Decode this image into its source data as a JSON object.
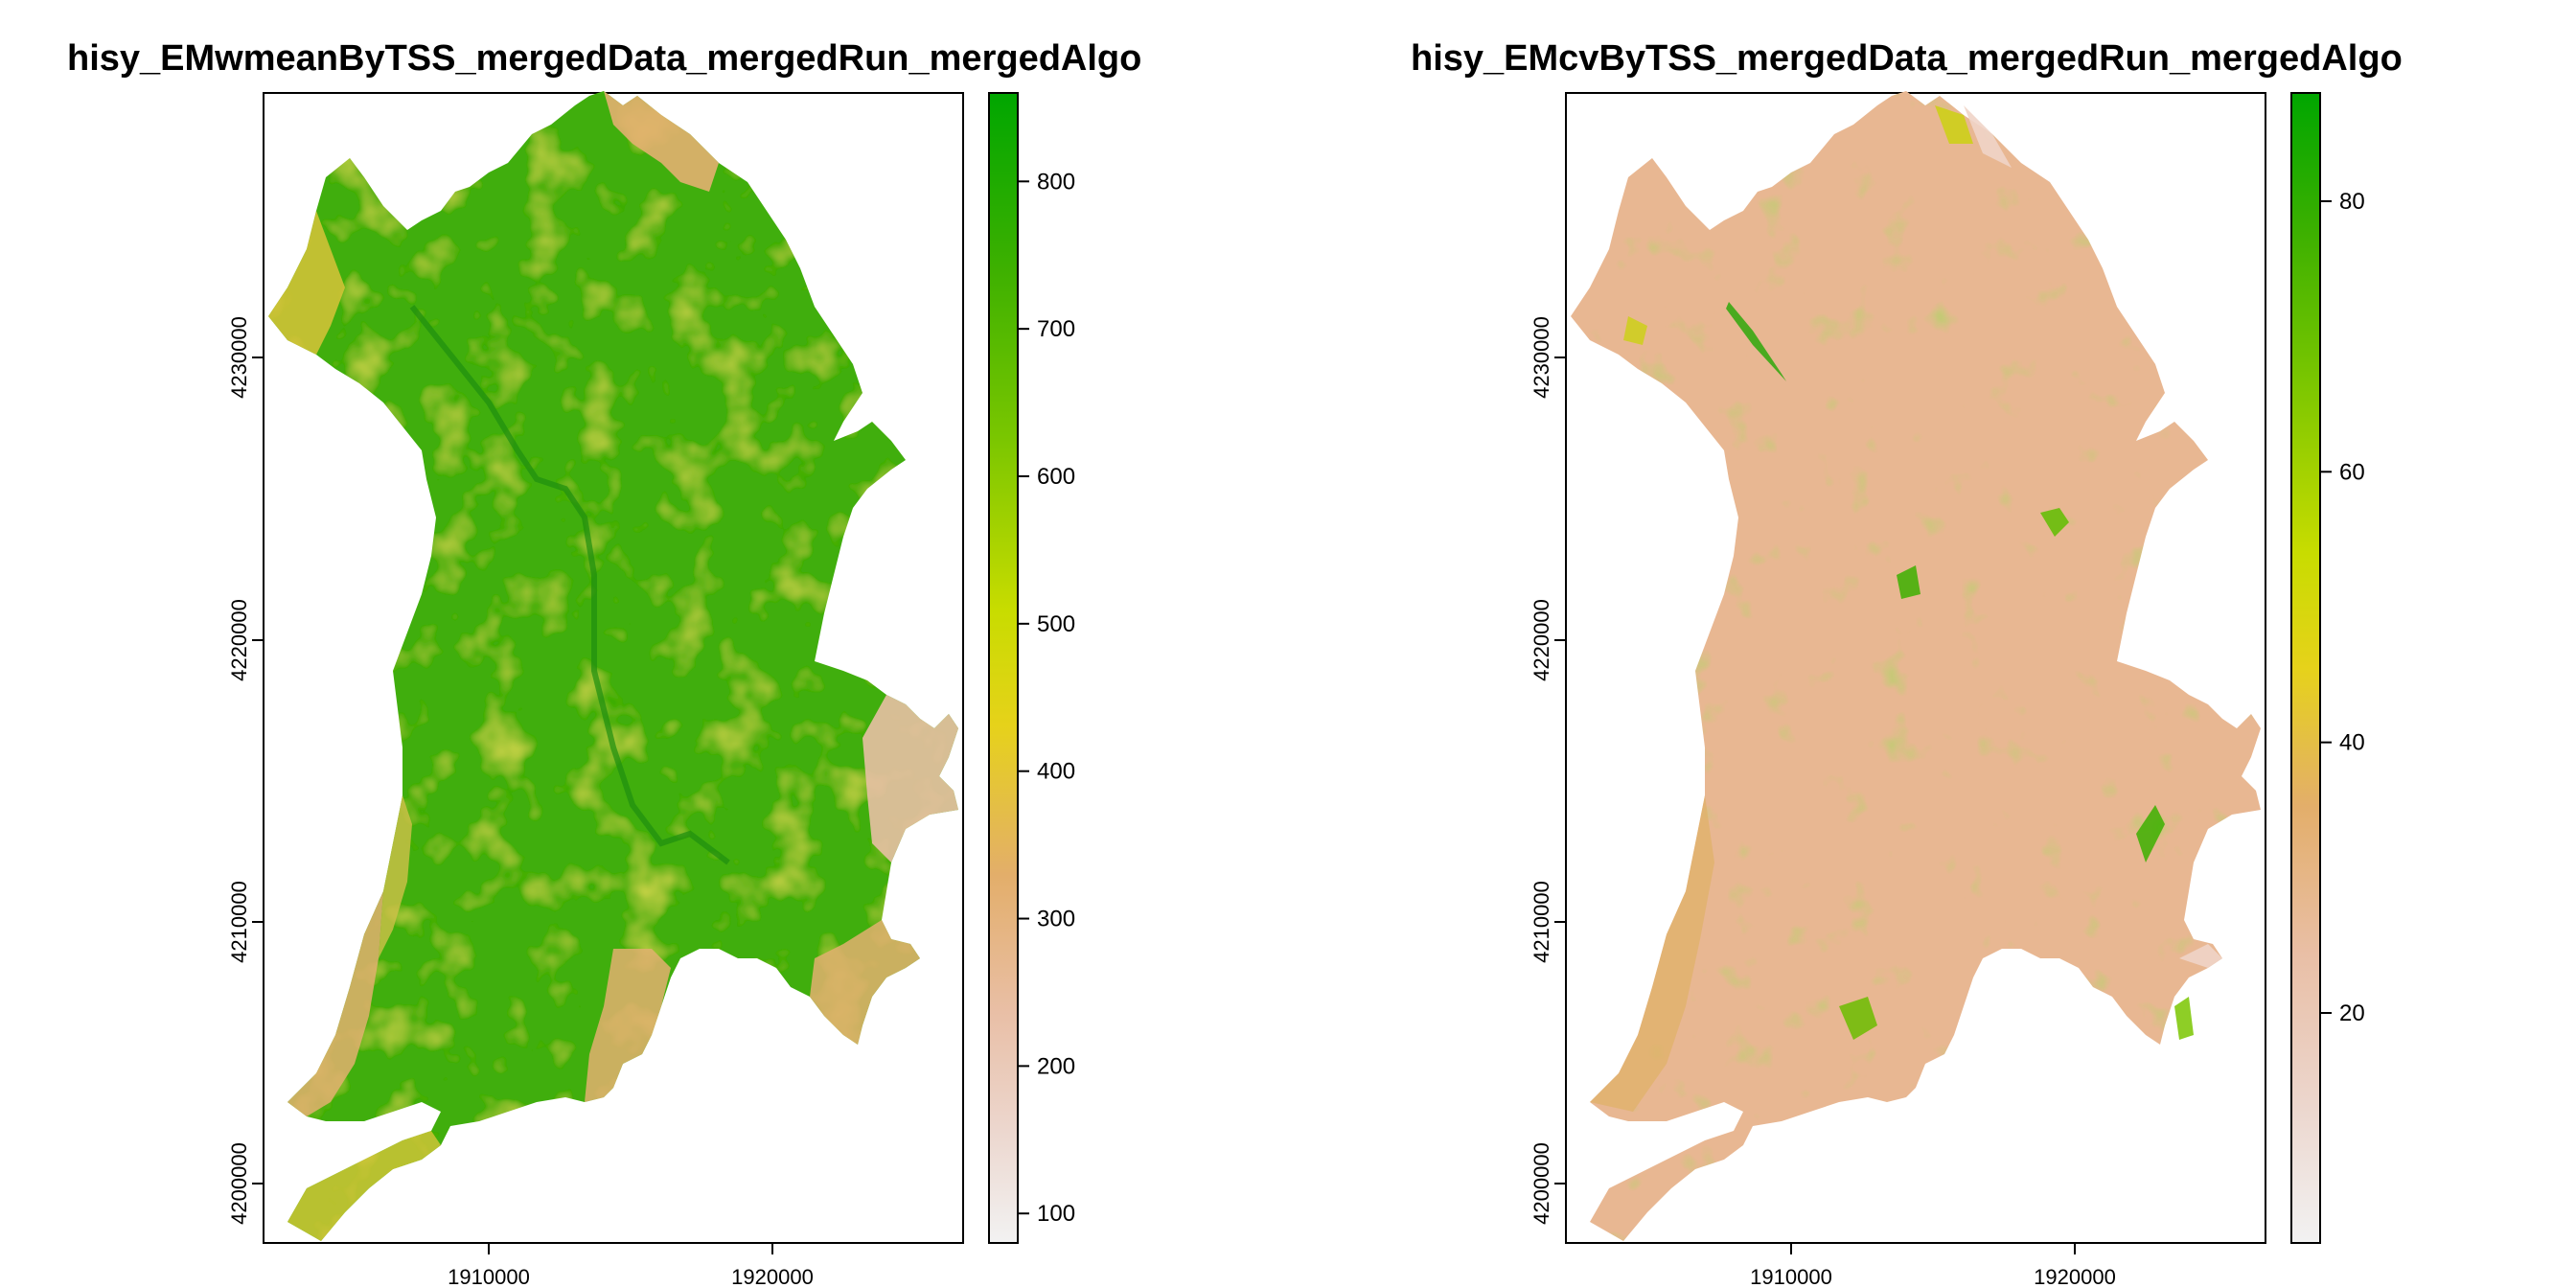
{
  "maps": [
    {
      "title": "hisy_EMwmeanByTSS_mergedData_mergedRun_mergedAlgo",
      "x_ticks": [
        "1910000",
        "1920000"
      ],
      "y_ticks": [
        "4200000",
        "4210000",
        "4220000",
        "4230000"
      ],
      "legend_ticks": [
        "100",
        "200",
        "300",
        "400",
        "500",
        "600",
        "700",
        "800"
      ],
      "legend_range": [
        80,
        860
      ],
      "dominant_color": "#2ea80a"
    },
    {
      "title": "hisy_EMcvByTSS_mergedData_mergedRun_mergedAlgo",
      "x_ticks": [
        "1910000",
        "1920000"
      ],
      "y_ticks": [
        "4200000",
        "4210000",
        "4220000",
        "4230000"
      ],
      "legend_ticks": [
        "20",
        "40",
        "60",
        "80"
      ],
      "legend_range": [
        3,
        88
      ],
      "dominant_color": "#e8b48a"
    }
  ],
  "colors": {
    "ramp": [
      "#f2f2f2",
      "#eccfc4",
      "#e9b89a",
      "#e3ae60",
      "#e6c229",
      "#e6e100",
      "#a8d400",
      "#6ec300",
      "#2eae00",
      "#00a600"
    ]
  }
}
